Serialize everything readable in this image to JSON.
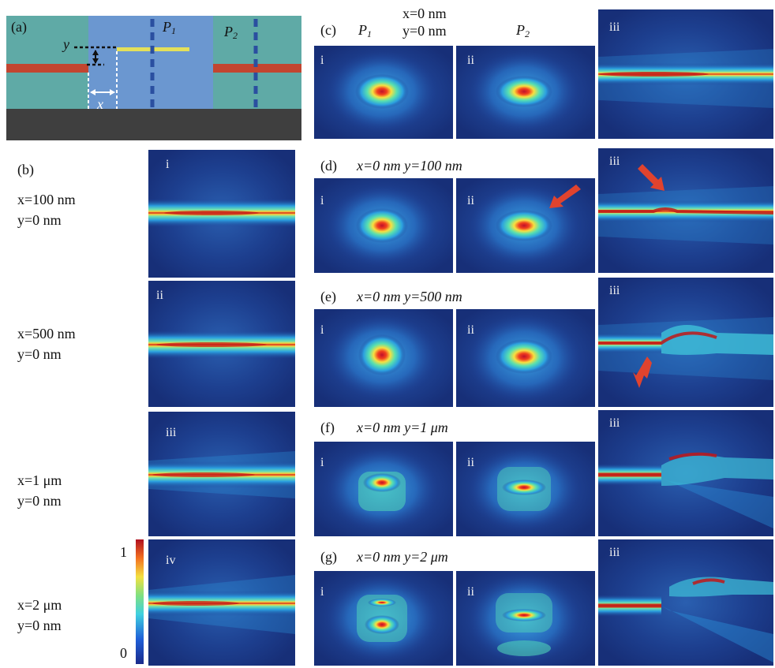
{
  "panel_a": {
    "label": "(a)",
    "y_label": "y",
    "x_label": "x",
    "p1": "P",
    "p1_sub": "1",
    "p2": "P",
    "p2_sub": "2"
  },
  "panel_b": {
    "label": "(b)",
    "rows": [
      {
        "roman": "i",
        "x_text": "x=100 nm",
        "y_text": "y=0 nm"
      },
      {
        "roman": "ii",
        "x_text": "x=500 nm",
        "y_text": "y=0 nm"
      },
      {
        "roman": "iii",
        "x_text": "x=1 μm",
        "y_text": "y=0 nm"
      },
      {
        "roman": "iv",
        "x_text": "x=2 μm",
        "y_text": "y=0 nm"
      }
    ]
  },
  "colorbar": {
    "max": "1",
    "min": "0"
  },
  "panel_c": {
    "label": "(c)",
    "p1": "P",
    "p1_sub": "1",
    "p2": "P",
    "p2_sub": "2",
    "x_text": "x=0 nm",
    "y_text": "y=0 nm",
    "romans": [
      "i",
      "ii",
      "iii"
    ]
  },
  "panel_d": {
    "label": "(d)",
    "cond": "x=0 nm  y=100 nm",
    "romans": [
      "i",
      "ii",
      "iii"
    ]
  },
  "panel_e": {
    "label": "(e)",
    "cond": "x=0 nm  y=500 nm",
    "romans": [
      "i",
      "ii",
      "iii"
    ]
  },
  "panel_f": {
    "label": "(f)",
    "cond": "x=0 nm  y=1 μm",
    "romans": [
      "i",
      "ii",
      "iii"
    ]
  },
  "panel_g": {
    "label": "(g)",
    "cond": "x=0 nm  y=2 μm",
    "romans": [
      "i",
      "ii",
      "iii"
    ]
  },
  "colors": {
    "field_bg": "#1d3d8f",
    "core": "#d22a1a",
    "arrow": "#e0432e",
    "schem_teal": "#5faaa6",
    "schem_blue": "#6b97d0",
    "schem_gray": "#3f3f3f",
    "schem_red": "#c24530",
    "schem_yellow": "#e4e05a"
  }
}
